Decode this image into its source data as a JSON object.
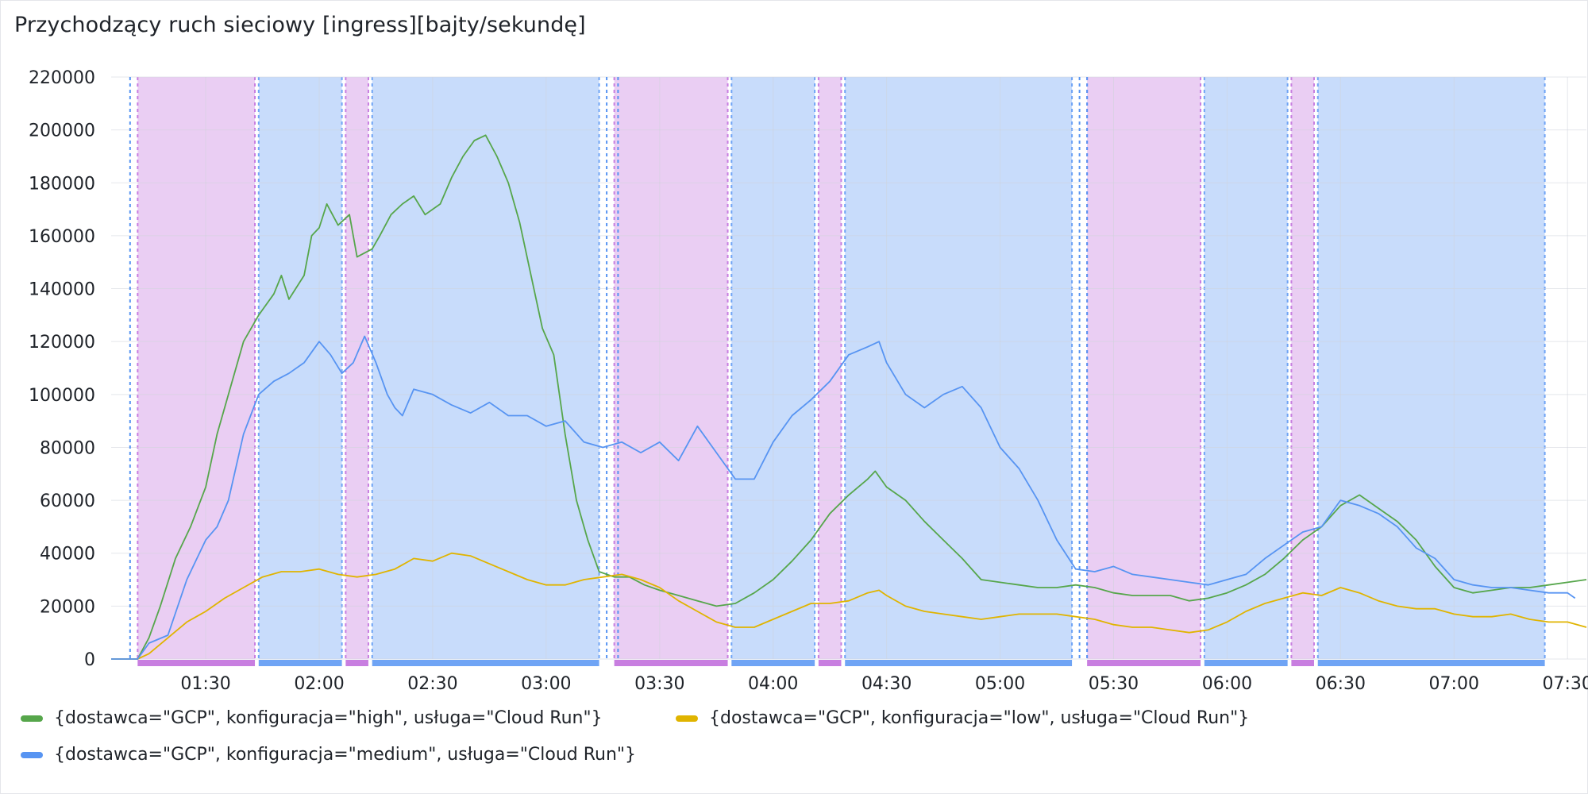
{
  "panel": {
    "title": "Przychodzący ruch sieciowy [ingress][bajty/sekundę]"
  },
  "chart_data": {
    "type": "line",
    "title": "Przychodzący ruch sieciowy [ingress][bajty/sekundę]",
    "x_range": [
      "01:05",
      "07:35"
    ],
    "ylim": [
      0,
      220000
    ],
    "y_ticks": [
      0,
      20000,
      40000,
      60000,
      80000,
      100000,
      120000,
      140000,
      160000,
      180000,
      200000,
      220000
    ],
    "x_ticks": [
      "01:30",
      "02:00",
      "02:30",
      "03:00",
      "03:30",
      "04:00",
      "04:30",
      "05:00",
      "05:30",
      "06:00",
      "06:30",
      "07:00",
      "07:30"
    ],
    "grid": true,
    "legend_position": "bottom-left",
    "series": [
      {
        "name": "{dostawca=\"GCP\", konfiguracja=\"high\", usługa=\"Cloud Run\"}",
        "color": "#56a64b",
        "points": [
          [
            "01:05",
            0
          ],
          [
            "01:12",
            0
          ],
          [
            "01:15",
            8000
          ],
          [
            "01:18",
            20000
          ],
          [
            "01:22",
            38000
          ],
          [
            "01:26",
            50000
          ],
          [
            "01:30",
            65000
          ],
          [
            "01:33",
            85000
          ],
          [
            "01:36",
            100000
          ],
          [
            "01:40",
            120000
          ],
          [
            "01:44",
            130000
          ],
          [
            "01:48",
            138000
          ],
          [
            "01:50",
            145000
          ],
          [
            "01:52",
            136000
          ],
          [
            "01:56",
            145000
          ],
          [
            "01:58",
            160000
          ],
          [
            "02:00",
            163000
          ],
          [
            "02:02",
            172000
          ],
          [
            "02:05",
            164000
          ],
          [
            "02:08",
            168000
          ],
          [
            "02:10",
            152000
          ],
          [
            "02:14",
            155000
          ],
          [
            "02:16",
            160000
          ],
          [
            "02:19",
            168000
          ],
          [
            "02:22",
            172000
          ],
          [
            "02:25",
            175000
          ],
          [
            "02:28",
            168000
          ],
          [
            "02:32",
            172000
          ],
          [
            "02:35",
            182000
          ],
          [
            "02:38",
            190000
          ],
          [
            "02:41",
            196000
          ],
          [
            "02:44",
            198000
          ],
          [
            "02:47",
            190000
          ],
          [
            "02:50",
            180000
          ],
          [
            "02:53",
            165000
          ],
          [
            "02:56",
            145000
          ],
          [
            "02:59",
            125000
          ],
          [
            "03:02",
            115000
          ],
          [
            "03:05",
            85000
          ],
          [
            "03:08",
            60000
          ],
          [
            "03:11",
            45000
          ],
          [
            "03:14",
            33000
          ],
          [
            "03:18",
            31000
          ],
          [
            "03:22",
            31000
          ],
          [
            "03:26",
            28000
          ],
          [
            "03:30",
            26000
          ],
          [
            "03:35",
            24000
          ],
          [
            "03:40",
            22000
          ],
          [
            "03:45",
            20000
          ],
          [
            "03:50",
            21000
          ],
          [
            "03:55",
            25000
          ],
          [
            "04:00",
            30000
          ],
          [
            "04:05",
            37000
          ],
          [
            "04:10",
            45000
          ],
          [
            "04:15",
            55000
          ],
          [
            "04:20",
            62000
          ],
          [
            "04:25",
            68000
          ],
          [
            "04:27",
            71000
          ],
          [
            "04:30",
            65000
          ],
          [
            "04:35",
            60000
          ],
          [
            "04:40",
            52000
          ],
          [
            "04:45",
            45000
          ],
          [
            "04:50",
            38000
          ],
          [
            "04:55",
            30000
          ],
          [
            "05:00",
            29000
          ],
          [
            "05:05",
            28000
          ],
          [
            "05:10",
            27000
          ],
          [
            "05:15",
            27000
          ],
          [
            "05:20",
            28000
          ],
          [
            "05:25",
            27000
          ],
          [
            "05:30",
            25000
          ],
          [
            "05:35",
            24000
          ],
          [
            "05:40",
            24000
          ],
          [
            "05:45",
            24000
          ],
          [
            "05:50",
            22000
          ],
          [
            "05:55",
            23000
          ],
          [
            "06:00",
            25000
          ],
          [
            "06:05",
            28000
          ],
          [
            "06:10",
            32000
          ],
          [
            "06:15",
            38000
          ],
          [
            "06:20",
            45000
          ],
          [
            "06:25",
            50000
          ],
          [
            "06:30",
            58000
          ],
          [
            "06:35",
            62000
          ],
          [
            "06:40",
            57000
          ],
          [
            "06:45",
            52000
          ],
          [
            "06:50",
            45000
          ],
          [
            "06:55",
            35000
          ],
          [
            "07:00",
            27000
          ],
          [
            "07:05",
            25000
          ],
          [
            "07:10",
            26000
          ],
          [
            "07:15",
            27000
          ],
          [
            "07:20",
            27000
          ],
          [
            "07:25",
            28000
          ],
          [
            "07:30",
            29000
          ],
          [
            "07:35",
            30000
          ]
        ]
      },
      {
        "name": "{dostawca=\"GCP\", konfiguracja=\"low\", usługa=\"Cloud Run\"}",
        "color": "#e0b400",
        "points": [
          [
            "01:05",
            0
          ],
          [
            "01:12",
            0
          ],
          [
            "01:15",
            2000
          ],
          [
            "01:20",
            8000
          ],
          [
            "01:25",
            14000
          ],
          [
            "01:30",
            18000
          ],
          [
            "01:35",
            23000
          ],
          [
            "01:40",
            27000
          ],
          [
            "01:45",
            31000
          ],
          [
            "01:50",
            33000
          ],
          [
            "01:55",
            33000
          ],
          [
            "02:00",
            34000
          ],
          [
            "02:05",
            32000
          ],
          [
            "02:10",
            31000
          ],
          [
            "02:15",
            32000
          ],
          [
            "02:20",
            34000
          ],
          [
            "02:25",
            38000
          ],
          [
            "02:30",
            37000
          ],
          [
            "02:35",
            40000
          ],
          [
            "02:40",
            39000
          ],
          [
            "02:45",
            36000
          ],
          [
            "02:50",
            33000
          ],
          [
            "02:55",
            30000
          ],
          [
            "03:00",
            28000
          ],
          [
            "03:05",
            28000
          ],
          [
            "03:10",
            30000
          ],
          [
            "03:15",
            31000
          ],
          [
            "03:20",
            32000
          ],
          [
            "03:25",
            30000
          ],
          [
            "03:30",
            27000
          ],
          [
            "03:35",
            22000
          ],
          [
            "03:40",
            18000
          ],
          [
            "03:45",
            14000
          ],
          [
            "03:50",
            12000
          ],
          [
            "03:55",
            12000
          ],
          [
            "04:00",
            15000
          ],
          [
            "04:05",
            18000
          ],
          [
            "04:10",
            21000
          ],
          [
            "04:15",
            21000
          ],
          [
            "04:20",
            22000
          ],
          [
            "04:25",
            25000
          ],
          [
            "04:28",
            26000
          ],
          [
            "04:30",
            24000
          ],
          [
            "04:35",
            20000
          ],
          [
            "04:40",
            18000
          ],
          [
            "04:45",
            17000
          ],
          [
            "04:50",
            16000
          ],
          [
            "04:55",
            15000
          ],
          [
            "05:00",
            16000
          ],
          [
            "05:05",
            17000
          ],
          [
            "05:10",
            17000
          ],
          [
            "05:15",
            17000
          ],
          [
            "05:20",
            16000
          ],
          [
            "05:25",
            15000
          ],
          [
            "05:30",
            13000
          ],
          [
            "05:35",
            12000
          ],
          [
            "05:40",
            12000
          ],
          [
            "05:45",
            11000
          ],
          [
            "05:50",
            10000
          ],
          [
            "05:55",
            11000
          ],
          [
            "06:00",
            14000
          ],
          [
            "06:05",
            18000
          ],
          [
            "06:10",
            21000
          ],
          [
            "06:15",
            23000
          ],
          [
            "06:20",
            25000
          ],
          [
            "06:25",
            24000
          ],
          [
            "06:30",
            27000
          ],
          [
            "06:35",
            25000
          ],
          [
            "06:40",
            22000
          ],
          [
            "06:45",
            20000
          ],
          [
            "06:50",
            19000
          ],
          [
            "06:55",
            19000
          ],
          [
            "07:00",
            17000
          ],
          [
            "07:05",
            16000
          ],
          [
            "07:10",
            16000
          ],
          [
            "07:15",
            17000
          ],
          [
            "07:20",
            15000
          ],
          [
            "07:25",
            14000
          ],
          [
            "07:30",
            14000
          ],
          [
            "07:35",
            12000
          ]
        ]
      },
      {
        "name": "{dostawca=\"GCP\", konfiguracja=\"medium\", usługa=\"Cloud Run\"}",
        "color": "#5794f2",
        "points": [
          [
            "01:05",
            0
          ],
          [
            "01:12",
            0
          ],
          [
            "01:15",
            6000
          ],
          [
            "01:20",
            9000
          ],
          [
            "01:25",
            30000
          ],
          [
            "01:30",
            45000
          ],
          [
            "01:33",
            50000
          ],
          [
            "01:36",
            60000
          ],
          [
            "01:40",
            85000
          ],
          [
            "01:44",
            100000
          ],
          [
            "01:48",
            105000
          ],
          [
            "01:52",
            108000
          ],
          [
            "01:56",
            112000
          ],
          [
            "02:00",
            120000
          ],
          [
            "02:03",
            115000
          ],
          [
            "02:06",
            108000
          ],
          [
            "02:09",
            112000
          ],
          [
            "02:12",
            122000
          ],
          [
            "02:15",
            112000
          ],
          [
            "02:18",
            100000
          ],
          [
            "02:20",
            95000
          ],
          [
            "02:22",
            92000
          ],
          [
            "02:25",
            102000
          ],
          [
            "02:30",
            100000
          ],
          [
            "02:35",
            96000
          ],
          [
            "02:40",
            93000
          ],
          [
            "02:45",
            97000
          ],
          [
            "02:50",
            92000
          ],
          [
            "02:55",
            92000
          ],
          [
            "03:00",
            88000
          ],
          [
            "03:05",
            90000
          ],
          [
            "03:10",
            82000
          ],
          [
            "03:15",
            80000
          ],
          [
            "03:20",
            82000
          ],
          [
            "03:25",
            78000
          ],
          [
            "03:30",
            82000
          ],
          [
            "03:35",
            75000
          ],
          [
            "03:40",
            88000
          ],
          [
            "03:45",
            78000
          ],
          [
            "03:50",
            68000
          ],
          [
            "03:55",
            68000
          ],
          [
            "04:00",
            82000
          ],
          [
            "04:05",
            92000
          ],
          [
            "04:10",
            98000
          ],
          [
            "04:15",
            105000
          ],
          [
            "04:20",
            115000
          ],
          [
            "04:25",
            118000
          ],
          [
            "04:28",
            120000
          ],
          [
            "04:30",
            112000
          ],
          [
            "04:35",
            100000
          ],
          [
            "04:40",
            95000
          ],
          [
            "04:45",
            100000
          ],
          [
            "04:50",
            103000
          ],
          [
            "04:55",
            95000
          ],
          [
            "05:00",
            80000
          ],
          [
            "05:05",
            72000
          ],
          [
            "05:10",
            60000
          ],
          [
            "05:15",
            45000
          ],
          [
            "05:20",
            34000
          ],
          [
            "05:25",
            33000
          ],
          [
            "05:30",
            35000
          ],
          [
            "05:35",
            32000
          ],
          [
            "05:40",
            31000
          ],
          [
            "05:45",
            30000
          ],
          [
            "05:50",
            29000
          ],
          [
            "05:55",
            28000
          ],
          [
            "06:00",
            30000
          ],
          [
            "06:05",
            32000
          ],
          [
            "06:10",
            38000
          ],
          [
            "06:15",
            43000
          ],
          [
            "06:20",
            48000
          ],
          [
            "06:25",
            50000
          ],
          [
            "06:30",
            60000
          ],
          [
            "06:35",
            58000
          ],
          [
            "06:40",
            55000
          ],
          [
            "06:45",
            50000
          ],
          [
            "06:50",
            42000
          ],
          [
            "06:55",
            38000
          ],
          [
            "07:00",
            30000
          ],
          [
            "07:05",
            28000
          ],
          [
            "07:10",
            27000
          ],
          [
            "07:15",
            27000
          ],
          [
            "07:20",
            26000
          ],
          [
            "07:25",
            25000
          ],
          [
            "07:30",
            25000
          ],
          [
            "07:32",
            23000
          ]
        ]
      }
    ],
    "regions": [
      {
        "color": "#c87ee0",
        "from": "01:12",
        "to": "01:43"
      },
      {
        "color": "#6fa4f5",
        "from": "01:44",
        "to": "02:06"
      },
      {
        "color": "#c87ee0",
        "from": "02:07",
        "to": "02:13"
      },
      {
        "color": "#6fa4f5",
        "from": "02:14",
        "to": "03:14"
      },
      {
        "color": "#c87ee0",
        "from": "03:18",
        "to": "03:48"
      },
      {
        "color": "#6fa4f5",
        "from": "03:49",
        "to": "04:11"
      },
      {
        "color": "#c87ee0",
        "from": "04:12",
        "to": "04:18"
      },
      {
        "color": "#6fa4f5",
        "from": "04:19",
        "to": "05:19"
      },
      {
        "color": "#c87ee0",
        "from": "05:23",
        "to": "05:53"
      },
      {
        "color": "#6fa4f5",
        "from": "05:54",
        "to": "06:16"
      },
      {
        "color": "#c87ee0",
        "from": "06:17",
        "to": "06:23"
      },
      {
        "color": "#6fa4f5",
        "from": "06:24",
        "to": "07:24"
      }
    ],
    "markers": [
      "01:10",
      "03:16",
      "03:19",
      "05:21",
      "05:23"
    ]
  }
}
